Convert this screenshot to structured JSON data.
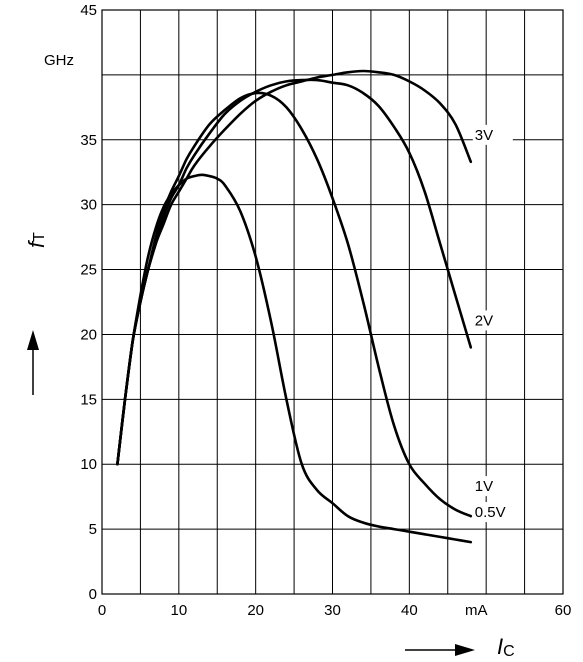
{
  "chart_data": {
    "type": "line",
    "title": "",
    "xlabel": "I",
    "xlabel_sub": "C",
    "ylabel": "f",
    "ylabel_sub": "T",
    "x_unit": "mA",
    "y_unit": "GHz",
    "xlim": [
      0,
      60
    ],
    "ylim": [
      0,
      45
    ],
    "x_ticks": [
      "0",
      "10",
      "20",
      "30",
      "40",
      "60"
    ],
    "y_ticks": [
      "0",
      "5",
      "10",
      "15",
      "20",
      "25",
      "30",
      "35",
      "45"
    ],
    "grid": true,
    "series": [
      {
        "name": "3V",
        "x": [
          2,
          3,
          4,
          5,
          6,
          7,
          8,
          9,
          10,
          11,
          12,
          14,
          16,
          18,
          20,
          22,
          24,
          26,
          28,
          30,
          32,
          34,
          36,
          38,
          40,
          42,
          44,
          46,
          48
        ],
        "y": [
          10,
          15,
          19.5,
          22.5,
          25,
          27,
          28.5,
          30,
          31,
          32,
          33,
          34.5,
          35.8,
          37,
          38,
          38.7,
          39.2,
          39.5,
          39.8,
          40,
          40.2,
          40.3,
          40.2,
          40,
          39.5,
          38.8,
          37.8,
          36.2,
          33.3
        ]
      },
      {
        "name": "2V",
        "x": [
          2,
          3,
          4,
          5,
          6,
          7,
          8,
          9,
          10,
          11,
          12,
          14,
          16,
          18,
          20,
          22,
          24,
          26,
          28,
          30,
          32,
          34,
          36,
          38,
          40,
          42,
          44,
          46,
          48
        ],
        "y": [
          10,
          15,
          19.5,
          22.5,
          25,
          27,
          29,
          30.5,
          31.5,
          32.8,
          33.8,
          35.5,
          37,
          38,
          38.7,
          39.2,
          39.5,
          39.6,
          39.6,
          39.4,
          39.2,
          38.6,
          37.6,
          36,
          34,
          31,
          27,
          23,
          19
        ]
      },
      {
        "name": "1V",
        "x": [
          2,
          3,
          4,
          5,
          6,
          7,
          8,
          9,
          10,
          11,
          12,
          14,
          16,
          18,
          20,
          22,
          24,
          26,
          28,
          30,
          32,
          34,
          36,
          38,
          40,
          42,
          44,
          46,
          48
        ],
        "y": [
          10,
          15,
          19.5,
          22.5,
          25,
          27.5,
          29.5,
          31,
          32.2,
          33.5,
          34.5,
          36.2,
          37.3,
          38.2,
          38.6,
          38.4,
          37.5,
          35.8,
          33.5,
          30.5,
          27,
          22.5,
          17.5,
          13,
          10,
          8.5,
          7.3,
          6.5,
          6
        ]
      },
      {
        "name": "0.5V",
        "x": [
          2,
          3,
          4,
          5,
          6,
          7,
          8,
          9,
          10,
          11,
          12,
          13,
          14,
          15,
          16,
          18,
          20,
          22,
          24,
          26,
          28,
          30,
          32,
          34,
          36,
          38,
          40,
          42,
          44,
          46,
          48
        ],
        "y": [
          10,
          15,
          19.5,
          23,
          26,
          28.2,
          29.8,
          30.8,
          31.5,
          32,
          32.2,
          32.3,
          32.2,
          32,
          31.5,
          29.5,
          26,
          21,
          15,
          10,
          8,
          7,
          6,
          5.5,
          5.2,
          5,
          4.8,
          4.6,
          4.4,
          4.2,
          4
        ]
      }
    ]
  }
}
